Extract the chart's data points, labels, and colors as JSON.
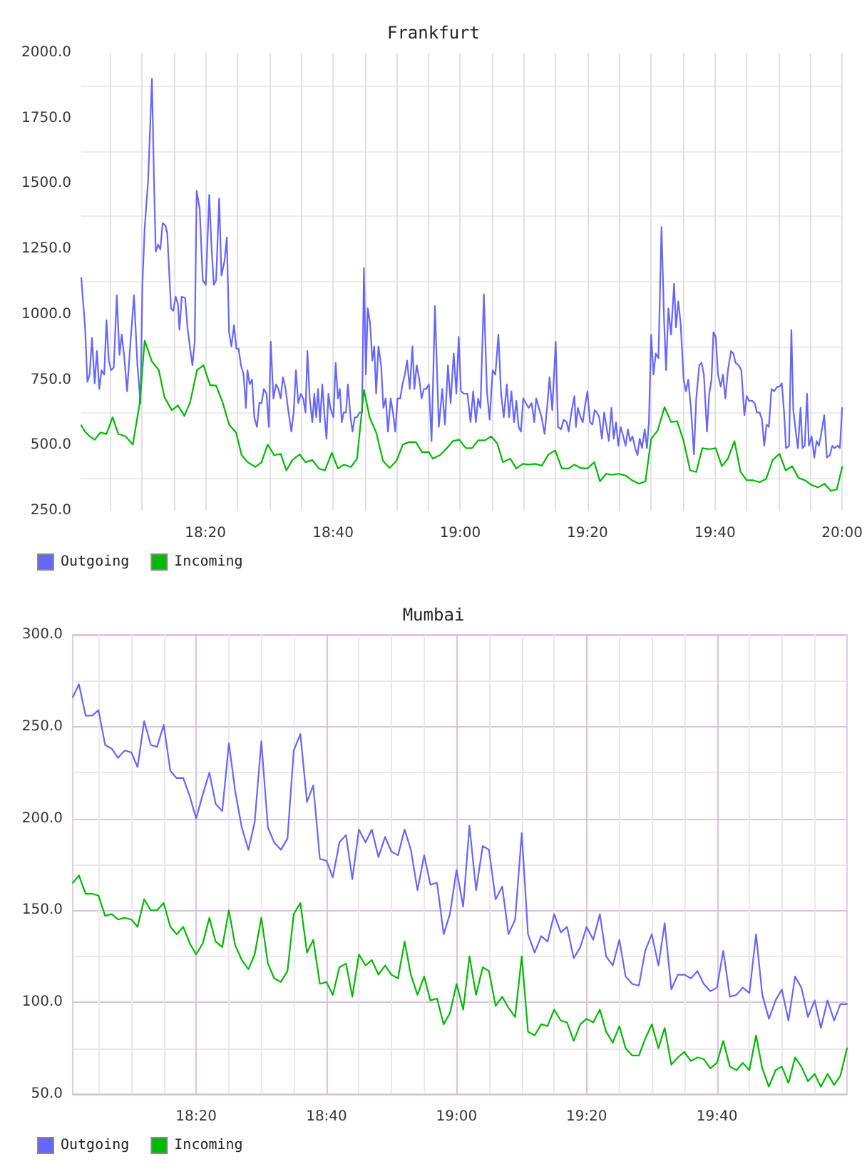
{
  "chart_data": [
    {
      "type": "line",
      "title": "Frankfurt",
      "series": [
        {
          "name": "Outgoing",
          "color": "#6666ff",
          "x": [
            18.008,
            18.018,
            18.024,
            18.03,
            18.036,
            18.043,
            18.049,
            18.055,
            18.061,
            18.068,
            18.074,
            18.08,
            18.086,
            18.093,
            18.101,
            18.108,
            18.114,
            18.12,
            18.128,
            18.136,
            18.146,
            18.155,
            18.163,
            18.168,
            18.174,
            18.183,
            18.193,
            18.199,
            18.203,
            18.209,
            18.215,
            18.221,
            18.228,
            18.233,
            18.243,
            18.249,
            18.255,
            18.261,
            18.265,
            18.271,
            18.28,
            18.286,
            18.293,
            18.299,
            18.305,
            18.31,
            18.318,
            18.326,
            18.334,
            18.343,
            18.349,
            18.355,
            18.361,
            18.369,
            18.375,
            18.383,
            18.389,
            18.395,
            18.401,
            18.408,
            18.414,
            18.42,
            18.426,
            18.433,
            18.439,
            18.443,
            18.449,
            18.455,
            18.461,
            18.468,
            18.474,
            18.48,
            18.486,
            18.493,
            18.499,
            18.504,
            18.511,
            18.518,
            18.524,
            18.53,
            18.536,
            18.543,
            18.549,
            18.558,
            18.564,
            18.57,
            18.576,
            18.583,
            18.589,
            18.595,
            18.6,
            18.606,
            18.613,
            18.618,
            18.623,
            18.628,
            18.633,
            18.639,
            18.645,
            18.65,
            18.655,
            18.66,
            18.668,
            18.674,
            18.68,
            18.685,
            18.69,
            18.695,
            18.701,
            18.706,
            18.713,
            18.718,
            18.724,
            18.73,
            18.736,
            18.743,
            18.748,
            18.753,
            18.758,
            18.764,
            18.77,
            18.775,
            18.78,
            18.786,
            18.793,
            18.799,
            18.805,
            18.811,
            18.818,
            18.824,
            18.83,
            18.836,
            18.843,
            18.849,
            18.855,
            18.861,
            18.868,
            18.875,
            18.88,
            18.886,
            18.893,
            18.899,
            18.905,
            18.911,
            18.918,
            18.925,
            18.934,
            18.944,
            18.953,
            18.96,
            18.968,
            18.975,
            18.983,
            18.99,
            18.996,
            19.002,
            19.01,
            19.019,
            19.027,
            19.034,
            19.041,
            19.047,
            19.053,
            19.062,
            19.07,
            19.077,
            19.085,
            19.092,
            19.1,
            19.107,
            19.114,
            19.122,
            19.128,
            19.134,
            19.141,
            19.147,
            19.153,
            19.159,
            19.165,
            19.172,
            19.179,
            19.187,
            19.194,
            19.199,
            19.206,
            19.213,
            19.221,
            19.228,
            19.234,
            19.241,
            19.25,
            19.256,
            19.264,
            19.271,
            19.279,
            19.284,
            19.291,
            19.299,
            19.303,
            19.308,
            19.315,
            19.321,
            19.326,
            19.333,
            19.34,
            19.346,
            19.352,
            19.358,
            19.364,
            19.371,
            19.377,
            19.383,
            19.389,
            19.396,
            19.402,
            19.408,
            19.414,
            19.42,
            19.427,
            19.433,
            19.439,
            19.445,
            19.451,
            19.458,
            19.464,
            19.47,
            19.476,
            19.483,
            19.489,
            19.494,
            19.5,
            19.506,
            19.512,
            19.519,
            19.527,
            19.534,
            19.539,
            19.545,
            19.552,
            19.56,
            19.565,
            19.571,
            19.577,
            19.585,
            19.591,
            19.597,
            19.604,
            19.612,
            19.618,
            19.626,
            19.632,
            19.638,
            19.646,
            19.652,
            19.658,
            19.663,
            19.669,
            19.675,
            19.682,
            19.688,
            19.694,
            19.701,
            19.709,
            19.715,
            19.721,
            19.729,
            19.736,
            19.744,
            19.75,
            19.756,
            19.764,
            19.771,
            19.777,
            19.784,
            19.79,
            19.796,
            19.802,
            19.808,
            19.815,
            19.822,
            19.83,
            19.836,
            19.842,
            19.848,
            19.853,
            19.861,
            19.867,
            19.872,
            19.878,
            19.884,
            19.891,
            19.896,
            19.902,
            19.908,
            19.913,
            19.92,
            19.927,
            19.933,
            19.939,
            19.945,
            19.953,
            19.96,
            19.968,
            19.974,
            19.98,
            19.988,
            19.994,
            20
          ],
          "values": [
            1140,
            950,
            742,
            770,
            910,
            737,
            860,
            715,
            787,
            770,
            978,
            824,
            787,
            797,
            1073,
            845,
            923,
            845,
            706,
            878,
            1073,
            806,
            661,
            1113,
            1330,
            1511,
            1900,
            1475,
            1240,
            1267,
            1249,
            1349,
            1340,
            1312,
            1023,
            1014,
            1068,
            1041,
            941,
            1068,
            1063,
            950,
            869,
            806,
            896,
            1472,
            1403,
            1131,
            1113,
            1457,
            1258,
            1113,
            1131,
            1443,
            1149,
            1204,
            1294,
            932,
            878,
            959,
            869,
            869,
            806,
            770,
            643,
            787,
            733,
            751,
            607,
            570,
            661,
            661,
            715,
            697,
            570,
            896,
            679,
            733,
            715,
            679,
            760,
            715,
            643,
            552,
            625,
            787,
            661,
            697,
            679,
            625,
            860,
            679,
            588,
            697,
            607,
            715,
            588,
            733,
            607,
            525,
            697,
            643,
            607,
            815,
            679,
            715,
            588,
            625,
            625,
            733,
            607,
            552,
            607,
            607,
            625,
            625,
            1177,
            770,
            1023,
            968,
            824,
            878,
            697,
            878,
            806,
            643,
            679,
            552,
            679,
            625,
            552,
            679,
            679,
            733,
            770,
            824,
            715,
            878,
            715,
            806,
            751,
            679,
            715,
            715,
            733,
            516,
            1032,
            570,
            715,
            579,
            806,
            661,
            851,
            697,
            914,
            706,
            697,
            697,
            588,
            706,
            588,
            679,
            643,
            1077,
            706,
            598,
            787,
            770,
            923,
            697,
            607,
            733,
            607,
            706,
            588,
            670,
            570,
            552,
            679,
            661,
            643,
            661,
            588,
            679,
            643,
            607,
            543,
            652,
            760,
            634,
            896,
            570,
            561,
            598,
            588,
            552,
            625,
            688,
            570,
            643,
            607,
            588,
            643,
            706,
            588,
            579,
            634,
            625,
            607,
            525,
            625,
            570,
            516,
            643,
            525,
            588,
            498,
            570,
            534,
            498,
            561,
            516,
            534,
            489,
            462,
            525,
            489,
            561,
            489,
            588,
            923,
            770,
            851,
            833,
            1334,
            968,
            787,
            1023,
            923,
            1117,
            950,
            1050,
            968,
            751,
            706,
            751,
            643,
            465,
            679,
            806,
            815,
            770,
            552,
            697,
            751,
            932,
            914,
            770,
            724,
            770,
            679,
            787,
            860,
            851,
            815,
            806,
            787,
            615,
            688,
            670,
            670,
            661,
            625,
            625,
            598,
            498,
            579,
            570,
            715,
            706,
            724,
            724,
            737,
            625,
            489,
            498,
            941,
            634,
            561,
            489,
            643,
            489,
            498,
            697,
            498,
            534,
            453,
            516,
            498,
            543,
            615,
            453,
            462,
            498,
            489,
            498,
            489,
            643
          ]
        },
        {
          "name": "Incoming",
          "color": "#00bb00",
          "x": [
            18.008,
            18.018,
            18.03,
            18.043,
            18.058,
            18.074,
            18.09,
            18.105,
            18.124,
            18.143,
            18.161,
            18.174,
            18.193,
            18.211,
            18.226,
            18.245,
            18.261,
            18.278,
            18.293,
            18.311,
            18.328,
            18.345,
            18.361,
            18.378,
            18.395,
            18.413,
            18.428,
            18.444,
            18.464,
            18.48,
            18.496,
            18.513,
            18.53,
            18.545,
            18.561,
            18.58,
            18.595,
            18.613,
            18.63,
            18.646,
            18.664,
            18.68,
            18.696,
            18.714,
            18.73,
            18.748,
            18.763,
            18.78,
            18.798,
            18.815,
            18.833,
            18.85,
            18.866,
            18.884,
            18.9,
            18.918,
            18.928,
            18.947,
            18.963,
            18.981,
            18.998,
            19.015,
            19.031,
            19.047,
            19.065,
            19.081,
            19.097,
            19.112,
            19.131,
            19.147,
            19.164,
            19.18,
            19.197,
            19.214,
            19.231,
            19.249,
            19.266,
            19.284,
            19.299,
            19.316,
            19.333,
            19.351,
            19.366,
            19.382,
            19.398,
            19.415,
            19.433,
            19.45,
            19.468,
            19.485,
            19.5,
            19.517,
            19.535,
            19.552,
            19.568,
            19.585,
            19.602,
            19.618,
            19.634,
            19.653,
            19.669,
            19.685,
            19.701,
            19.718,
            19.734,
            19.75,
            19.767,
            19.784,
            19.801,
            19.818,
            19.836,
            19.852,
            19.869,
            19.886,
            19.903,
            19.92,
            19.937,
            19.954,
            19.97,
            19.986,
            20
          ],
          "values": [
            576,
            552,
            534,
            521,
            549,
            543,
            607,
            543,
            534,
            503,
            661,
            900,
            820,
            787,
            683,
            634,
            652,
            612,
            664,
            787,
            806,
            730,
            728,
            664,
            579,
            549,
            462,
            435,
            417,
            435,
            503,
            462,
            467,
            404,
            444,
            465,
            435,
            444,
            411,
            404,
            471,
            411,
            426,
            417,
            449,
            712,
            607,
            549,
            440,
            413,
            440,
            503,
            512,
            512,
            474,
            474,
            449,
            462,
            485,
            516,
            521,
            489,
            489,
            519,
            519,
            534,
            507,
            435,
            449,
            411,
            429,
            426,
            429,
            422,
            465,
            480,
            411,
            411,
            426,
            413,
            411,
            435,
            362,
            391,
            387,
            391,
            384,
            366,
            353,
            362,
            525,
            556,
            646,
            589,
            592,
            516,
            404,
            398,
            489,
            485,
            489,
            420,
            449,
            516,
            398,
            366,
            366,
            359,
            371,
            444,
            467,
            404,
            420,
            375,
            366,
            348,
            339,
            353,
            326,
            331,
            417
          ]
        }
      ],
      "xlim": [
        18.008,
        20
      ],
      "xticks": [
        {
          "value": 18.083,
          "label": null
        },
        {
          "value": 18.167,
          "label": null
        },
        {
          "value": 18.25,
          "label": null
        },
        {
          "value": 18.333,
          "label": "18:20"
        },
        {
          "value": 18.417,
          "label": null
        },
        {
          "value": 18.5,
          "label": null
        },
        {
          "value": 18.583,
          "label": null
        },
        {
          "value": 18.667,
          "label": "18:40"
        },
        {
          "value": 18.75,
          "label": null
        },
        {
          "value": 18.833,
          "label": null
        },
        {
          "value": 18.917,
          "label": null
        },
        {
          "value": 19,
          "label": "19:00"
        },
        {
          "value": 19.083,
          "label": null
        },
        {
          "value": 19.167,
          "label": null
        },
        {
          "value": 19.25,
          "label": null
        },
        {
          "value": 19.333,
          "label": "19:20"
        },
        {
          "value": 19.417,
          "label": null
        },
        {
          "value": 19.5,
          "label": null
        },
        {
          "value": 19.583,
          "label": null
        },
        {
          "value": 19.667,
          "label": "19:40"
        },
        {
          "value": 19.75,
          "label": null
        },
        {
          "value": 19.833,
          "label": null
        },
        {
          "value": 19.917,
          "label": null
        },
        {
          "value": 20,
          "label": "20:00"
        }
      ],
      "ylim": [
        250,
        2000
      ],
      "yticks": [
        {
          "value": 250,
          "label": "250.0"
        },
        {
          "value": 375,
          "label": null
        },
        {
          "value": 500,
          "label": "500.0"
        },
        {
          "value": 625,
          "label": null
        },
        {
          "value": 750,
          "label": "750.0"
        },
        {
          "value": 875,
          "label": null
        },
        {
          "value": 1000,
          "label": "1000.0"
        },
        {
          "value": 1125,
          "label": null
        },
        {
          "value": 1250,
          "label": "1250.0"
        },
        {
          "value": 1375,
          "label": null
        },
        {
          "value": 1500,
          "label": "1500.0"
        },
        {
          "value": 1625,
          "label": null
        },
        {
          "value": 1750,
          "label": "1750.0"
        },
        {
          "value": 1875,
          "label": null
        },
        {
          "value": 2000,
          "label": "2000.0"
        }
      ],
      "grid": true,
      "legend": "bottom left",
      "marker": "none",
      "line_style": "solid"
    },
    {
      "type": "line",
      "title": "Mumbai",
      "x": [
        18.017,
        18.033,
        18.05,
        18.067,
        18.083,
        18.1,
        18.117,
        18.133,
        18.15,
        18.167,
        18.183,
        18.2,
        18.217,
        18.233,
        18.25,
        18.267,
        18.283,
        18.3,
        18.317,
        18.333,
        18.35,
        18.367,
        18.383,
        18.4,
        18.417,
        18.433,
        18.45,
        18.467,
        18.483,
        18.5,
        18.517,
        18.533,
        18.55,
        18.567,
        18.583,
        18.6,
        18.617,
        18.633,
        18.65,
        18.667,
        18.683,
        18.7,
        18.717,
        18.733,
        18.75,
        18.767,
        18.783,
        18.8,
        18.817,
        18.833,
        18.85,
        18.867,
        18.883,
        18.9,
        18.917,
        18.933,
        18.95,
        18.967,
        18.983,
        19,
        19.017,
        19.033,
        19.05,
        19.067,
        19.083,
        19.1,
        19.117,
        19.133,
        19.15,
        19.167,
        19.183,
        19.2,
        19.217,
        19.233,
        19.25,
        19.267,
        19.283,
        19.3,
        19.317,
        19.333,
        19.35,
        19.367,
        19.383,
        19.4,
        19.417,
        19.433,
        19.45,
        19.467,
        19.483,
        19.5,
        19.517,
        19.533,
        19.55,
        19.567,
        19.583,
        19.6,
        19.617,
        19.633,
        19.65,
        19.667,
        19.683,
        19.7,
        19.717,
        19.733,
        19.75,
        19.767,
        19.783,
        19.8,
        19.817,
        19.833,
        19.85,
        19.867,
        19.883,
        19.9,
        19.917,
        19.933,
        19.95,
        19.967,
        19.983,
        20
      ],
      "series": [
        {
          "name": "Outgoing",
          "color": "#6666ff",
          "values": [
            266,
            273,
            256,
            256,
            259,
            240,
            238,
            233,
            237,
            236,
            228,
            253,
            240,
            239,
            251,
            226,
            222,
            222,
            212,
            200,
            213,
            225,
            208,
            204,
            241,
            215,
            195,
            183,
            198,
            242,
            195,
            187,
            183,
            189,
            237,
            246,
            209,
            218,
            178,
            177,
            168,
            187,
            191,
            167,
            194,
            187,
            194,
            179,
            190,
            182,
            180,
            194,
            183,
            161,
            180,
            164,
            165,
            137,
            148,
            172,
            152,
            196,
            161,
            185,
            183,
            156,
            163,
            137,
            145,
            192,
            137,
            127,
            136,
            133,
            148,
            138,
            141,
            124,
            130,
            141,
            134,
            148,
            125,
            120,
            134,
            114,
            110,
            109,
            128,
            137,
            120,
            143,
            107,
            115,
            115,
            113,
            117,
            110,
            106,
            108,
            128,
            103,
            104,
            108,
            105,
            137,
            104,
            91,
            101,
            107,
            90,
            114,
            108,
            92,
            101,
            86,
            101,
            90,
            99,
            99
          ]
        },
        {
          "name": "Incoming",
          "color": "#00bb00",
          "values": [
            165,
            169,
            159,
            159,
            158,
            147,
            148,
            145,
            146,
            145,
            141,
            156,
            150,
            150,
            154,
            141,
            137,
            141,
            132,
            126,
            132,
            146,
            133,
            130,
            150,
            131,
            123,
            118,
            126,
            146,
            121,
            113,
            111,
            117,
            148,
            154,
            127,
            134,
            110,
            111,
            104,
            119,
            121,
            103,
            126,
            120,
            123,
            115,
            120,
            115,
            113,
            133,
            115,
            104,
            114,
            101,
            102,
            88,
            94,
            110,
            96,
            125,
            104,
            119,
            117,
            98,
            103,
            97,
            92,
            125,
            84,
            82,
            88,
            87,
            96,
            90,
            89,
            79,
            88,
            91,
            89,
            96,
            84,
            78,
            87,
            75,
            71,
            71,
            80,
            88,
            75,
            86,
            66,
            70,
            73,
            68,
            70,
            69,
            64,
            67,
            79,
            65,
            63,
            67,
            63,
            82,
            64,
            54,
            63,
            65,
            56,
            70,
            65,
            57,
            61,
            54,
            61,
            55,
            60,
            75
          ]
        }
      ],
      "xlim": [
        18.017,
        20
      ],
      "xticks": [
        {
          "value": 18.083,
          "label": null
        },
        {
          "value": 18.167,
          "label": null
        },
        {
          "value": 18.25,
          "label": null
        },
        {
          "value": 18.333,
          "label": "18:20"
        },
        {
          "value": 18.417,
          "label": null
        },
        {
          "value": 18.5,
          "label": null
        },
        {
          "value": 18.583,
          "label": null
        },
        {
          "value": 18.667,
          "label": "18:40"
        },
        {
          "value": 18.75,
          "label": null
        },
        {
          "value": 18.833,
          "label": null
        },
        {
          "value": 18.917,
          "label": null
        },
        {
          "value": 19,
          "label": "19:00"
        },
        {
          "value": 19.083,
          "label": null
        },
        {
          "value": 19.167,
          "label": null
        },
        {
          "value": 19.25,
          "label": null
        },
        {
          "value": 19.333,
          "label": "19:20"
        },
        {
          "value": 19.417,
          "label": null
        },
        {
          "value": 19.5,
          "label": null
        },
        {
          "value": 19.583,
          "label": null
        },
        {
          "value": 19.667,
          "label": "19:40"
        },
        {
          "value": 19.75,
          "label": null
        },
        {
          "value": 19.833,
          "label": null
        },
        {
          "value": 19.917,
          "label": null
        }
      ],
      "ylim": [
        50,
        300
      ],
      "yticks": [
        {
          "value": 50,
          "label": "50.0"
        },
        {
          "value": 75,
          "label": null
        },
        {
          "value": 100,
          "label": "100.0"
        },
        {
          "value": 125,
          "label": null
        },
        {
          "value": 150,
          "label": "150.0"
        },
        {
          "value": 175,
          "label": null
        },
        {
          "value": 200,
          "label": "200.0"
        },
        {
          "value": 225,
          "label": null
        },
        {
          "value": 250,
          "label": "250.0"
        },
        {
          "value": 275,
          "label": null
        },
        {
          "value": 300,
          "label": "300.0"
        }
      ],
      "grid": true,
      "legend": "bottom left",
      "marker": "none",
      "line_style": "solid"
    }
  ]
}
